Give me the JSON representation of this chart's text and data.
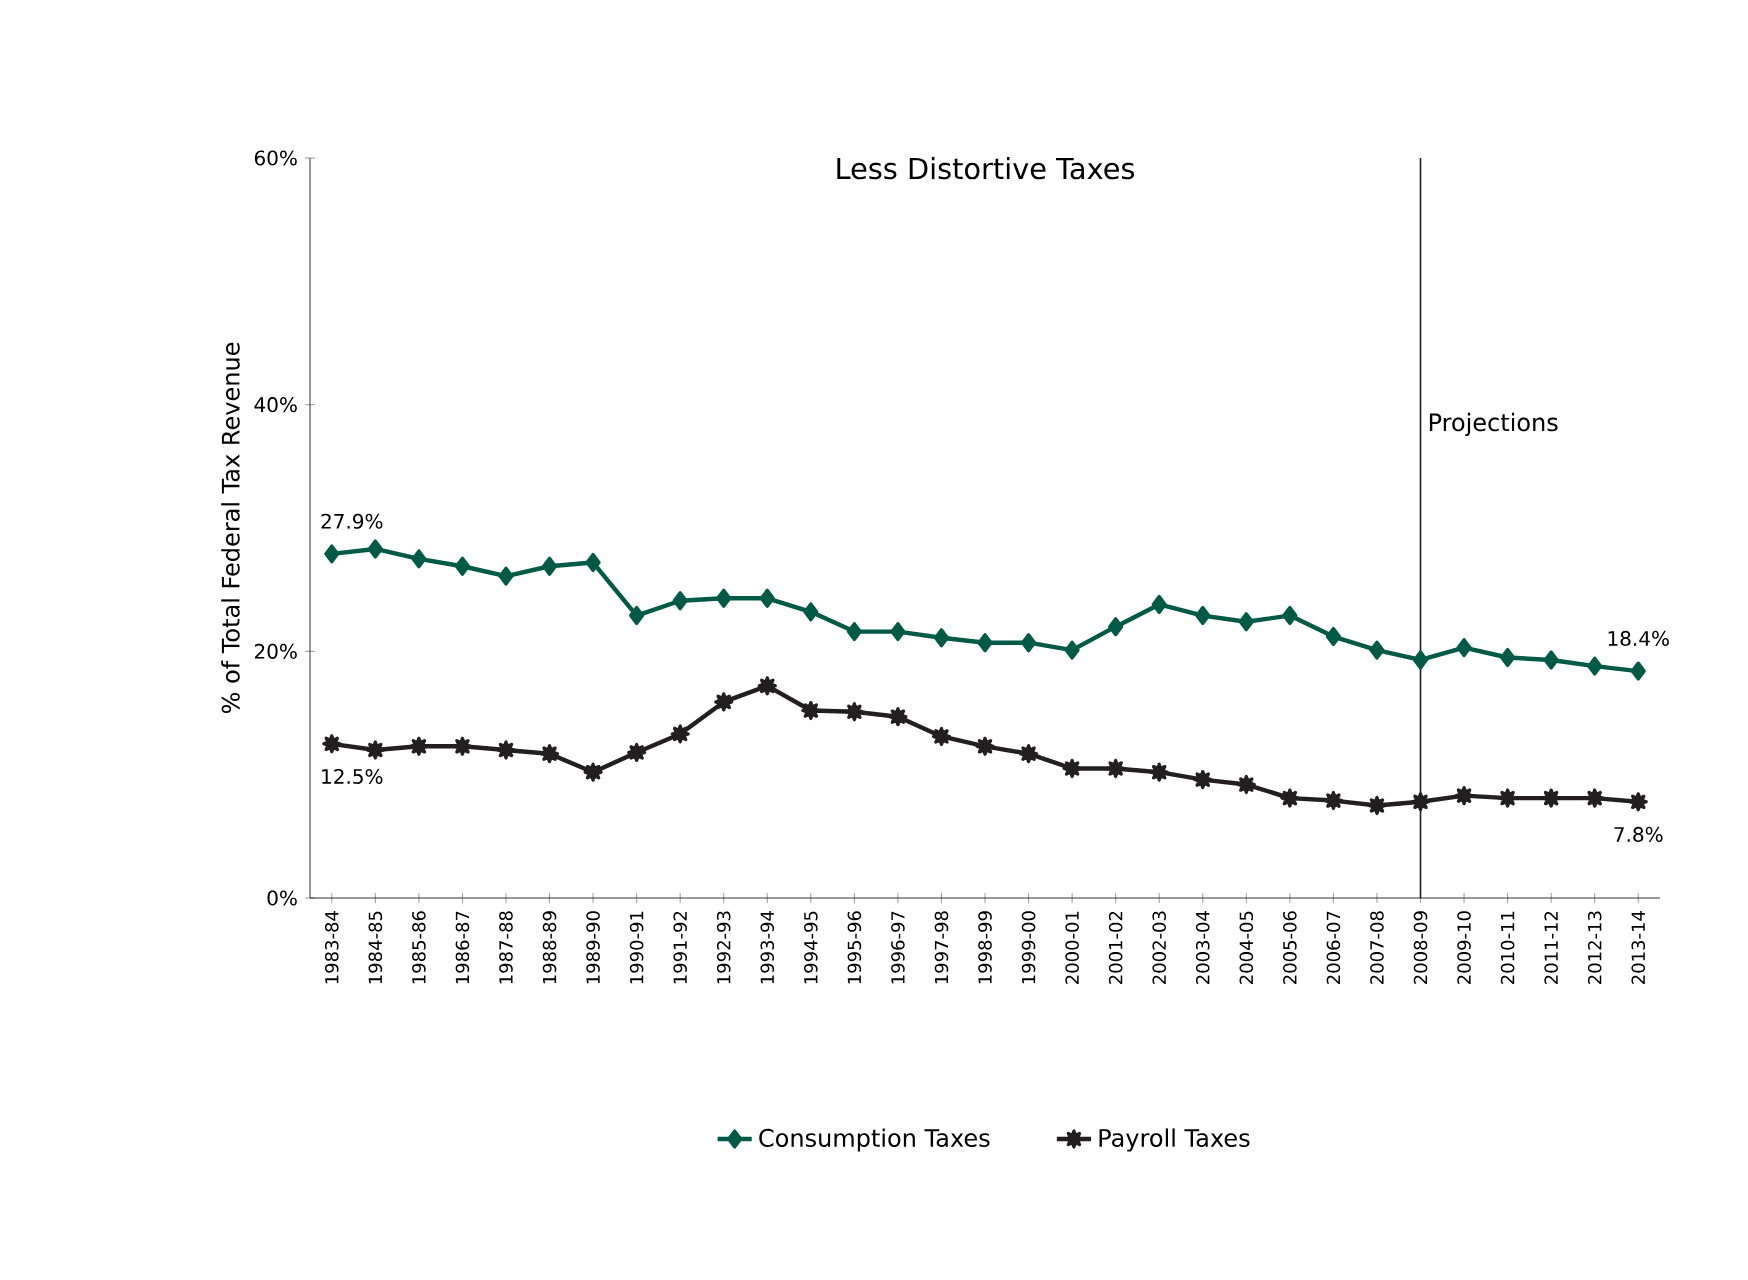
{
  "chart_data": {
    "type": "line",
    "title": "Less Distortive Taxes",
    "ylabel": "% of Total Federal Tax Revenue",
    "categories": [
      "1983-84",
      "1984-85",
      "1985-86",
      "1986-87",
      "1987-88",
      "1988-89",
      "1989-90",
      "1990-91",
      "1991-92",
      "1992-93",
      "1993-94",
      "1994-95",
      "1995-96",
      "1996-97",
      "1997-98",
      "1998-99",
      "1999-00",
      "2000-01",
      "2001-02",
      "2002-03",
      "2003-04",
      "2004-05",
      "2005-06",
      "2006-07",
      "2007-08",
      "2008-09",
      "2009-10",
      "2010-11",
      "2011-12",
      "2012-13",
      "2013-14"
    ],
    "series": [
      {
        "name": "Consumption Taxes",
        "color": "#005a46",
        "marker": "diamond",
        "values": [
          27.9,
          28.3,
          27.5,
          26.9,
          26.1,
          26.9,
          27.2,
          22.9,
          24.1,
          24.3,
          24.3,
          23.2,
          21.6,
          21.6,
          21.1,
          20.7,
          20.7,
          20.1,
          22.0,
          23.8,
          22.9,
          22.4,
          22.9,
          21.2,
          20.1,
          19.3,
          20.3,
          19.5,
          19.3,
          18.8,
          18.4
        ]
      },
      {
        "name": "Payroll Taxes",
        "color": "#231f20",
        "marker": "star",
        "values": [
          12.5,
          12.0,
          12.3,
          12.3,
          12.0,
          11.7,
          10.2,
          11.8,
          13.3,
          15.9,
          17.2,
          15.2,
          15.1,
          14.7,
          13.1,
          12.3,
          11.7,
          10.5,
          10.5,
          10.2,
          9.6,
          9.2,
          8.1,
          7.9,
          7.5,
          7.8,
          8.3,
          8.1,
          8.1,
          8.1,
          7.8
        ]
      }
    ],
    "ylim": [
      0,
      60
    ],
    "yticks": [
      {
        "value": 0,
        "label": "0%"
      },
      {
        "value": 20,
        "label": "20%"
      },
      {
        "value": 40,
        "label": "40%"
      },
      {
        "value": 60,
        "label": "60%"
      }
    ],
    "ref_lines": [
      {
        "axis": "x",
        "value": "2008-09",
        "label": "Projections",
        "color": "#231f20"
      }
    ],
    "annotations": [
      {
        "text": "27.9%",
        "x": "1983-84",
        "y": 27.9
      },
      {
        "text": "12.5%",
        "x": "1983-84",
        "y": 12.5
      },
      {
        "text": "18.4%",
        "x": "2013-14",
        "y": 18.4
      },
      {
        "text": "7.8%",
        "x": "2013-14",
        "y": 7.8
      }
    ],
    "grid": false,
    "legend": "bottom",
    "line_style": "solid"
  }
}
